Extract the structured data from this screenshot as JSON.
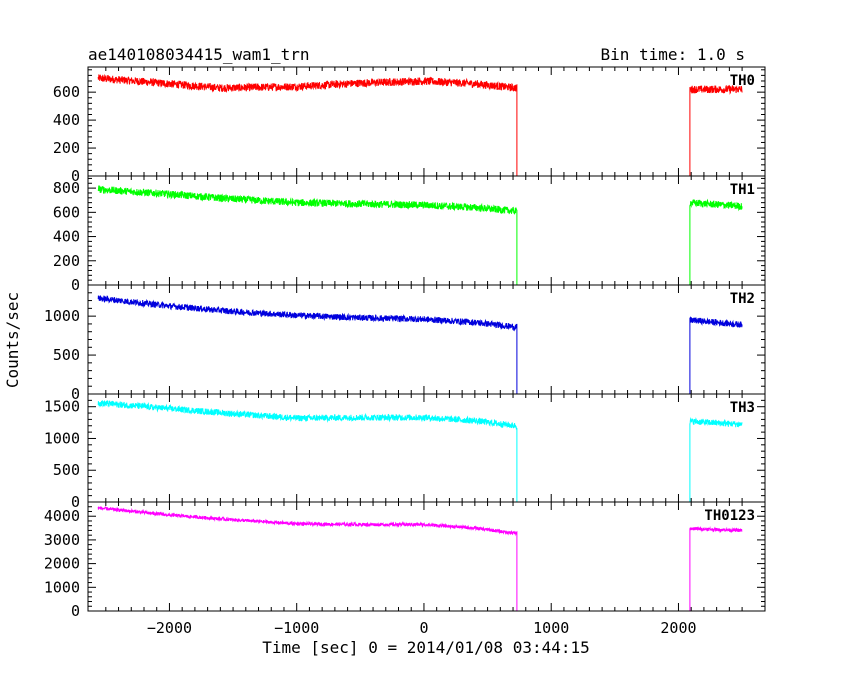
{
  "chart_data": {
    "type": "line",
    "title": "ae140108034415_wam1_trn",
    "bin_time_label": "Bin time: 1.0 s",
    "xlabel": "Time [sec] 0 = 2014/01/08 03:44:15",
    "ylabel": "Counts/sec",
    "xlim": [
      -2640,
      2680
    ],
    "x_ticks": [
      -2000,
      -1000,
      0,
      1000,
      2000
    ],
    "x_tick_labels": [
      "−2000",
      "−1000",
      "0",
      "1000",
      "2000"
    ],
    "gap": [
      730,
      2090
    ],
    "data_x_start": -2560,
    "data_x_end": 2500,
    "grid": false,
    "legend": "none",
    "panels": [
      {
        "name": "TH0",
        "color": "#ff0000",
        "ylim": [
          0,
          780
        ],
        "y_ticks": [
          0,
          200,
          400,
          600
        ],
        "y_tick_labels": [
          "0",
          "200",
          "400",
          "600"
        ],
        "trend": [
          [
            -2560,
            700
          ],
          [
            -2000,
            660
          ],
          [
            -1600,
            630
          ],
          [
            -1000,
            640
          ],
          [
            -500,
            665
          ],
          [
            0,
            680
          ],
          [
            400,
            660
          ],
          [
            720,
            630
          ],
          [
            2090,
            620
          ],
          [
            2500,
            620
          ]
        ],
        "noise": 28
      },
      {
        "name": "TH1",
        "color": "#00ff00",
        "ylim": [
          0,
          900
        ],
        "y_ticks": [
          0,
          200,
          400,
          600,
          800
        ],
        "y_tick_labels": [
          "0",
          "200",
          "400",
          "600",
          "800"
        ],
        "trend": [
          [
            -2560,
            790
          ],
          [
            -2000,
            750
          ],
          [
            -1500,
            710
          ],
          [
            -1000,
            680
          ],
          [
            -500,
            670
          ],
          [
            0,
            660
          ],
          [
            400,
            640
          ],
          [
            720,
            610
          ],
          [
            2090,
            680
          ],
          [
            2500,
            650
          ]
        ],
        "noise": 30
      },
      {
        "name": "TH2",
        "color": "#0000dd",
        "ylim": [
          0,
          1400
        ],
        "y_ticks": [
          0,
          500,
          1000
        ],
        "y_tick_labels": [
          "0",
          "500",
          "1000"
        ],
        "trend": [
          [
            -2560,
            1230
          ],
          [
            -2000,
            1130
          ],
          [
            -1500,
            1060
          ],
          [
            -1000,
            1010
          ],
          [
            -500,
            980
          ],
          [
            0,
            960
          ],
          [
            400,
            920
          ],
          [
            720,
            860
          ],
          [
            2090,
            950
          ],
          [
            2500,
            890
          ]
        ],
        "noise": 40
      },
      {
        "name": "TH3",
        "color": "#00ffff",
        "ylim": [
          0,
          1700
        ],
        "y_ticks": [
          0,
          500,
          1000,
          1500
        ],
        "y_tick_labels": [
          "0",
          "500",
          "1000",
          "1500"
        ],
        "trend": [
          [
            -2560,
            1560
          ],
          [
            -2000,
            1470
          ],
          [
            -1500,
            1390
          ],
          [
            -1000,
            1320
          ],
          [
            -500,
            1330
          ],
          [
            0,
            1330
          ],
          [
            400,
            1280
          ],
          [
            720,
            1200
          ],
          [
            2090,
            1270
          ],
          [
            2500,
            1220
          ]
        ],
        "noise": 50
      },
      {
        "name": "TH0123",
        "color": "#ff00ff",
        "ylim": [
          0,
          4600
        ],
        "y_ticks": [
          0,
          1000,
          2000,
          3000,
          4000
        ],
        "y_tick_labels": [
          "0",
          "1000",
          "2000",
          "3000",
          "4000"
        ],
        "trend": [
          [
            -2560,
            4350
          ],
          [
            -2000,
            4050
          ],
          [
            -1500,
            3850
          ],
          [
            -1000,
            3680
          ],
          [
            -500,
            3650
          ],
          [
            0,
            3650
          ],
          [
            400,
            3500
          ],
          [
            720,
            3280
          ],
          [
            2090,
            3480
          ],
          [
            2500,
            3400
          ]
        ],
        "noise": 70
      }
    ]
  }
}
